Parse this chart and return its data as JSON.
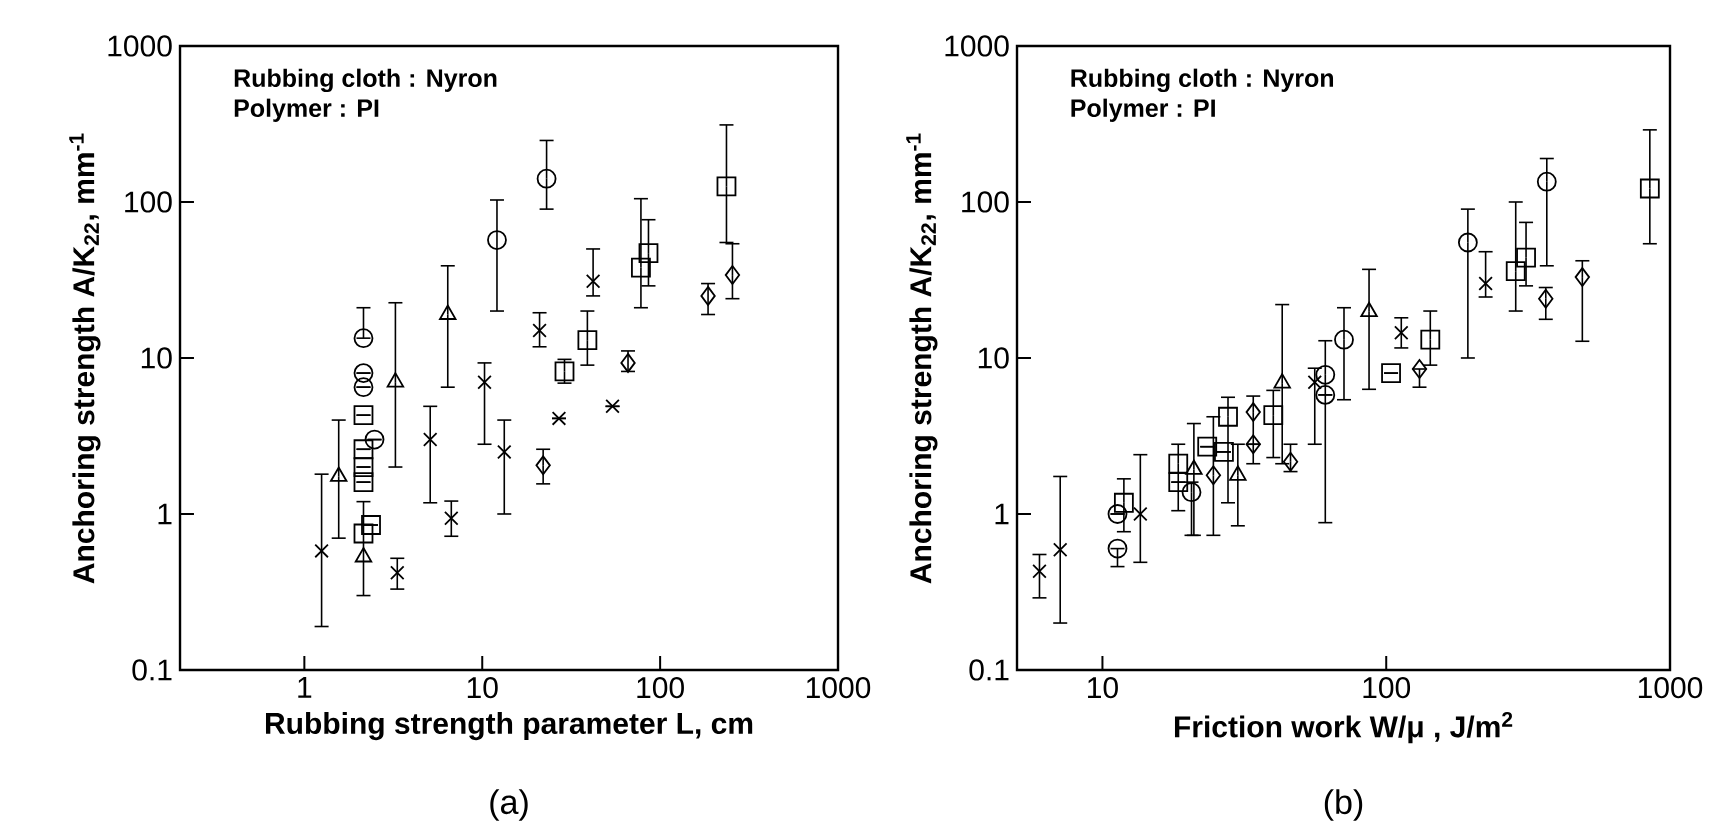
{
  "chart_data": [
    {
      "type": "scatter",
      "title": "(a)",
      "xlabel": "Rubbing strength parameter L, cm",
      "ylabel": "Anchoring strength A/K$_{22}$, mm$^{-1}$",
      "log": "xy",
      "annotations": [
        "Rubbing cloth : Nyron",
        "Polymer : PI"
      ],
      "xlim": [
        0.2,
        1000
      ],
      "ylim": [
        0.1,
        1000
      ],
      "xticks": [
        1,
        10,
        100,
        1000
      ],
      "yticks": [
        0.1,
        1,
        10,
        100,
        1000
      ],
      "series": [
        {
          "marker": "cross",
          "color": "#000000",
          "x": [
            1.25,
            5.1,
            10.3,
            21,
            42
          ],
          "values": [
            0.58,
            3.0,
            7.0,
            15,
            31
          ],
          "errors": [
            [
              0.19,
              1.8
            ],
            [
              1.18,
              4.9
            ],
            [
              2.8,
              9.3
            ],
            [
              11.8,
              19.5
            ],
            [
              25,
              50
            ]
          ]
        },
        {
          "marker": "triangle",
          "color": "#000000",
          "x": [
            1.56,
            3.25,
            6.4
          ],
          "values": [
            1.74,
            7.0,
            19
          ],
          "errors": [
            [
              0.7,
              4.0
            ],
            [
              2.0,
              22.6
            ],
            [
              6.5,
              39
            ]
          ]
        },
        {
          "marker": "cross",
          "color": "#000000",
          "x": [
            3.33,
            6.7,
            13.3,
            27,
            54
          ],
          "values": [
            0.42,
            0.94,
            2.5,
            4.1,
            4.9
          ],
          "errors": [
            [
              0.33,
              0.52
            ],
            [
              0.72,
              1.21
            ],
            [
              1.0,
              4.0
            ],
            null,
            null
          ]
        },
        {
          "marker": "circle",
          "color": "#000000",
          "x": [
            12.1,
            23
          ],
          "values": [
            57,
            141
          ],
          "errors": [
            [
              20,
              103
            ],
            [
              90,
              248
            ]
          ]
        },
        {
          "marker": "square",
          "color": "#000000",
          "x": [
            29,
            39,
            78,
            86,
            236
          ],
          "values": [
            8.2,
            13,
            38,
            47,
            126
          ],
          "errors": [
            [
              6.9,
              9.8
            ],
            [
              9,
              20
            ],
            [
              21,
              105
            ],
            [
              29,
              77
            ],
            [
              55,
              312
            ]
          ]
        },
        {
          "marker": "diamond",
          "color": "#000000",
          "x": [
            22,
            66,
            186,
            255
          ],
          "values": [
            2.05,
            9.3,
            25,
            34
          ],
          "errors": [
            [
              1.56,
              2.6
            ],
            [
              8.2,
              11.1
            ],
            [
              19,
              30
            ],
            [
              24,
              54
            ]
          ]
        },
        {
          "marker": "circle",
          "color": "#000000",
          "x": [
            2.15,
            2.15,
            2.15,
            2.48
          ],
          "values": [
            13.4,
            8.0,
            6.5,
            3.0
          ],
          "errors": [
            [
              13.4,
              21
            ],
            null,
            null,
            null
          ]
        },
        {
          "marker": "square",
          "color": "#000000",
          "x": [
            2.15,
            2.15,
            2.15,
            2.15,
            2.37,
            2.15
          ],
          "values": [
            4.3,
            2.6,
            2.0,
            1.6,
            0.85,
            0.75
          ],
          "errors": [
            null,
            null,
            null,
            null,
            null,
            [
              0.3,
              1.2
            ]
          ]
        },
        {
          "marker": "triangle",
          "color": "#000000",
          "x": [
            2.15
          ],
          "values": [
            0.53
          ]
        }
      ]
    },
    {
      "type": "scatter",
      "title": "(b)",
      "xlabel": "Friction work W/μ , J/m$^{2}$",
      "ylabel": "Anchoring strength A/K$_{22}$, mm$^{-1}$",
      "log": "xy",
      "annotations": [
        "Rubbing cloth : Nyron",
        "Polymer : PI"
      ],
      "xlim": [
        5,
        1000
      ],
      "ylim": [
        0.1,
        1000
      ],
      "xticks": [
        10,
        100,
        1000
      ],
      "yticks": [
        0.1,
        1,
        10,
        100,
        1000
      ],
      "series": [
        {
          "marker": "cross",
          "color": "#000000",
          "x": [
            7.1,
            56,
            113,
            224
          ],
          "values": [
            0.59,
            7.0,
            14.5,
            30
          ],
          "errors": [
            [
              0.2,
              1.74
            ],
            [
              2.8,
              8.6
            ],
            [
              11.6,
              18.1
            ],
            [
              24.6,
              48
            ]
          ]
        },
        {
          "marker": "cross",
          "color": "#000000",
          "x": [
            6.0,
            13.6
          ],
          "values": [
            0.43,
            1.0
          ],
          "errors": [
            [
              0.29,
              0.55
            ],
            [
              0.49,
              2.4
            ]
          ]
        },
        {
          "marker": "circle",
          "color": "#000000",
          "x": [
            11.3,
            11.3,
            20.6,
            61,
            61,
            71
          ],
          "values": [
            0.6,
            1.0,
            1.38,
            7.8,
            5.8,
            13.1
          ],
          "errors": [
            [
              0.46,
              0.6
            ],
            null,
            [
              0.73,
              1.6
            ],
            [
              0.88,
              12.9
            ],
            null,
            [
              5.4,
              21
            ]
          ]
        },
        {
          "marker": "square",
          "color": "#000000",
          "x": [
            11.9,
            18.5,
            18.5,
            23.4,
            26.8,
            27.7,
            40
          ],
          "values": [
            1.18,
            2.1,
            1.6,
            2.7,
            2.5,
            4.2,
            4.3
          ],
          "errors": [
            [
              0.77,
              1.68
            ],
            [
              1.05,
              2.8
            ],
            null,
            null,
            null,
            [
              1.18,
              5.6
            ],
            [
              2.3,
              6.2
            ]
          ]
        },
        {
          "marker": "triangle",
          "color": "#000000",
          "x": [
            21,
            43,
            87
          ],
          "values": [
            1.93,
            6.9,
            19.8
          ],
          "errors": [
            [
              0.73,
              3.8
            ],
            [
              2.1,
              22
            ],
            [
              6.3,
              37
            ]
          ]
        },
        {
          "marker": "diamond",
          "color": "#000000",
          "x": [
            24.6,
            34,
            34
          ],
          "values": [
            1.77,
            4.5,
            2.8
          ],
          "errors": [
            [
              0.73,
              4.2
            ],
            [
              2.1,
              5.7
            ],
            null
          ]
        },
        {
          "marker": "triangle",
          "color": "#000000",
          "x": [
            30
          ],
          "values": [
            1.77
          ],
          "errors": [
            [
              0.84,
              2.8
            ]
          ]
        },
        {
          "marker": "diamond",
          "color": "#000000",
          "x": [
            46,
            131,
            365,
            491
          ],
          "values": [
            2.16,
            8.5,
            24,
            33
          ],
          "errors": [
            [
              1.87,
              2.8
            ],
            [
              6.5,
              8.5
            ],
            [
              17.7,
              28.3
            ],
            [
              12.8,
              42
            ]
          ]
        },
        {
          "marker": "square",
          "color": "#000000",
          "x": [
            104,
            143,
            286,
            311,
            849
          ],
          "values": [
            8.0,
            13.1,
            36,
            44,
            122
          ],
          "errors": [
            null,
            [
              9,
              20
            ],
            [
              20,
              100
            ],
            [
              29,
              74
            ],
            [
              54,
              290
            ]
          ]
        },
        {
          "marker": "circle",
          "color": "#000000",
          "x": [
            194,
            368
          ],
          "values": [
            55,
            135
          ],
          "errors": [
            [
              10,
              90
            ],
            [
              39,
              190
            ]
          ]
        }
      ]
    }
  ]
}
